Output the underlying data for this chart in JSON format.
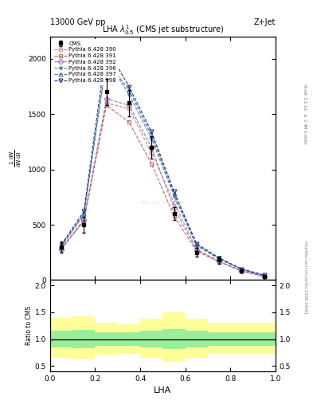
{
  "title_top": "13000 GeV pp",
  "title_right": "Z+Jet",
  "plot_title": "LHA $\\lambda^{1}_{0.5}$ (CMS jet substructure)",
  "ylabel_main": "$\\frac{1}{\\mathrm{d}N}\\frac{\\mathrm{d}N}{\\mathrm{d}\\lambda}$",
  "ylabel_ratio": "Ratio to CMS",
  "xlabel": "LHA",
  "right_label_top": "Rivet 3.1.10, $\\geq$ 2.4M events",
  "right_label_bot": "mcplots.cern.ch [arXiv:1306.3436]",
  "watermark": "CMS_2017_FSQ_20187",
  "x_bins": [
    0.0,
    0.1,
    0.2,
    0.3,
    0.4,
    0.5,
    0.6,
    0.7,
    0.8,
    0.9,
    1.0
  ],
  "cms_y": [
    300,
    500,
    1700,
    1600,
    1200,
    600,
    250,
    180,
    80,
    30
  ],
  "cms_yerr": [
    50,
    70,
    120,
    120,
    100,
    60,
    40,
    30,
    15,
    10
  ],
  "p390_y": [
    280,
    550,
    1600,
    1550,
    1150,
    700,
    280,
    170,
    85,
    35
  ],
  "p391_y": [
    290,
    530,
    1580,
    1430,
    1050,
    580,
    260,
    165,
    80,
    32
  ],
  "p392_y": [
    275,
    540,
    1640,
    1580,
    1200,
    650,
    270,
    168,
    82,
    33
  ],
  "p396_y": [
    300,
    590,
    2000,
    1680,
    1280,
    760,
    310,
    190,
    95,
    40
  ],
  "p397_y": [
    310,
    600,
    1980,
    1720,
    1310,
    780,
    320,
    195,
    98,
    42
  ],
  "p398_y": [
    320,
    620,
    2100,
    1750,
    1340,
    800,
    330,
    200,
    100,
    45
  ],
  "color_390": "#cc8888",
  "color_391": "#cc6666",
  "color_392": "#9977bb",
  "color_396": "#5588bb",
  "color_397": "#4477aa",
  "color_398": "#223388",
  "marker_390": "o",
  "marker_391": "s",
  "marker_392": "D",
  "marker_396": "*",
  "marker_397": "^",
  "marker_398": "v",
  "ratio_xbins": [
    0.0,
    0.1,
    0.2,
    0.3,
    0.4,
    0.5,
    0.6,
    0.7,
    0.8,
    0.9,
    1.0
  ],
  "yellow_lo": [
    0.65,
    0.62,
    0.7,
    0.73,
    0.65,
    0.58,
    0.65,
    0.72,
    0.72,
    0.72
  ],
  "yellow_hi": [
    1.4,
    1.42,
    1.3,
    1.28,
    1.38,
    1.5,
    1.38,
    1.3,
    1.3,
    1.3
  ],
  "green_lo": [
    0.85,
    0.83,
    0.87,
    0.88,
    0.85,
    0.82,
    0.85,
    0.87,
    0.87,
    0.87
  ],
  "green_hi": [
    1.15,
    1.17,
    1.13,
    1.12,
    1.15,
    1.18,
    1.15,
    1.13,
    1.13,
    1.13
  ],
  "ylim_main": [
    0,
    2200
  ],
  "ylim_ratio": [
    0.4,
    2.1
  ],
  "xlim": [
    0.0,
    1.0
  ],
  "yticks_main": [
    0,
    500,
    1000,
    1500,
    2000
  ],
  "yticks_ratio": [
    0.5,
    1.0,
    1.5,
    2.0
  ]
}
